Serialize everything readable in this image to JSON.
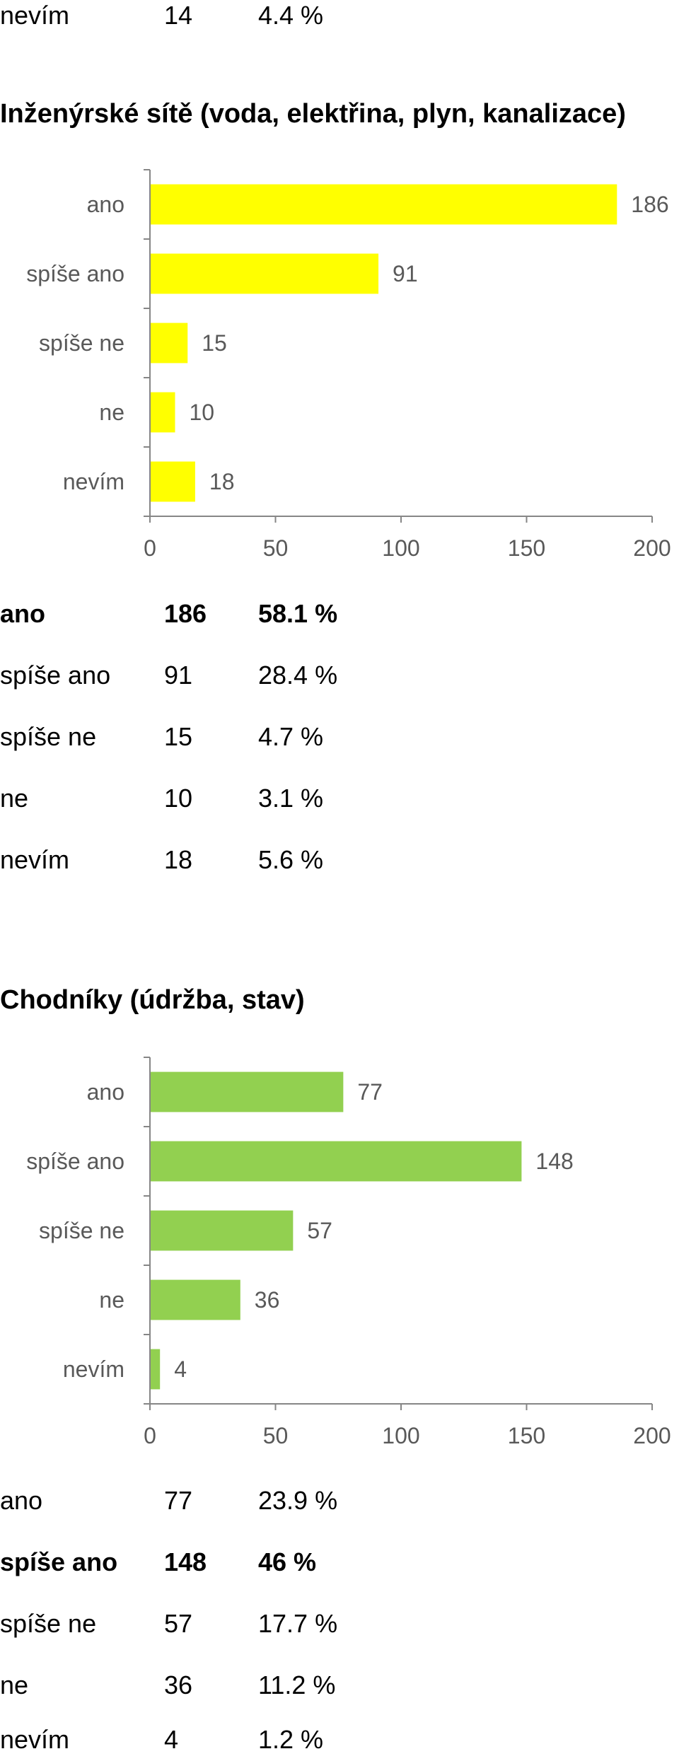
{
  "top_row": {
    "label": "nevím",
    "count": "14",
    "percent": "4.4 %"
  },
  "sections": [
    {
      "title": "Inženýrské sítě (voda, elektřina, plyn, kanalizace)",
      "color": "#ffff00",
      "rows": [
        {
          "label": "ano",
          "count": "186",
          "percent": "58.1 %",
          "bold": true
        },
        {
          "label": "spíše ano",
          "count": "91",
          "percent": "28.4 %",
          "bold": false
        },
        {
          "label": "spíše ne",
          "count": "15",
          "percent": "4.7 %",
          "bold": false
        },
        {
          "label": "ne",
          "count": "10",
          "percent": "3.1 %",
          "bold": false
        },
        {
          "label": "nevím",
          "count": "18",
          "percent": "5.6 %",
          "bold": false
        }
      ]
    },
    {
      "title": "Chodníky (údržba, stav)",
      "color": "#92d050",
      "rows": [
        {
          "label": "ano",
          "count": "77",
          "percent": "23.9 %",
          "bold": false
        },
        {
          "label": "spíše ano",
          "count": "148",
          "percent": "46 %",
          "bold": true
        },
        {
          "label": "spíše ne",
          "count": "57",
          "percent": "17.7 %",
          "bold": false
        },
        {
          "label": "ne",
          "count": "36",
          "percent": "11.2 %",
          "bold": false
        },
        {
          "label": "nevím",
          "count": "4",
          "percent": "1.2 %",
          "bold": false
        }
      ]
    }
  ],
  "chart_data": [
    {
      "type": "bar",
      "orientation": "horizontal",
      "categories": [
        "ano",
        "spíše ano",
        "spíše ne",
        "ne",
        "nevím"
      ],
      "values": [
        186,
        91,
        15,
        10,
        18
      ],
      "xlim": [
        0,
        200
      ],
      "xticks": [
        0,
        50,
        100,
        150,
        200
      ],
      "color": "#ffff00",
      "grid": false
    },
    {
      "type": "bar",
      "orientation": "horizontal",
      "categories": [
        "ano",
        "spíše ano",
        "spíše ne",
        "ne",
        "nevím"
      ],
      "values": [
        77,
        148,
        57,
        36,
        4
      ],
      "xlim": [
        0,
        200
      ],
      "xticks": [
        0,
        50,
        100,
        150,
        200
      ],
      "color": "#92d050",
      "grid": false
    }
  ]
}
